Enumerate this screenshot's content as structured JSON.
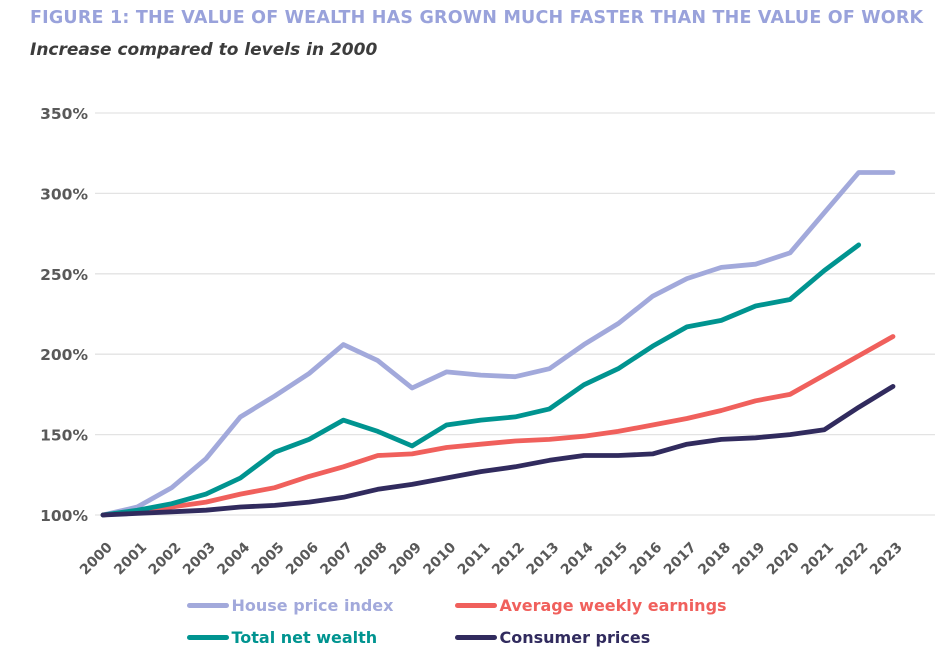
{
  "figure": {
    "title": "FIGURE 1: THE VALUE OF WEALTH HAS GROWN MUCH FASTER THAN THE VALUE OF WORK",
    "subtitle": "Increase compared to levels in 2000"
  },
  "colors": {
    "title_text": "#99a2db",
    "subtitle_text": "#3c3c3c",
    "axis_text": "#595959",
    "gridline": "#e3e3e3",
    "background": "#ffffff"
  },
  "chart_data": {
    "type": "line",
    "title": "FIGURE 1: THE VALUE OF WEALTH HAS GROWN MUCH FASTER THAN THE VALUE OF WORK",
    "subtitle": "Increase compared to levels in 2000",
    "xlabel": "",
    "ylabel": "",
    "grid": "horizontal gridlines only",
    "legend_position": "bottom",
    "ylim": [
      100,
      360
    ],
    "y_tick_values": [
      100,
      150,
      200,
      250,
      300,
      350
    ],
    "y_tick_labels": [
      "100%",
      "150%",
      "200%",
      "250%",
      "300%",
      "350%"
    ],
    "x": [
      2000,
      2001,
      2002,
      2003,
      2004,
      2005,
      2006,
      2007,
      2008,
      2009,
      2010,
      2011,
      2012,
      2013,
      2014,
      2015,
      2016,
      2017,
      2018,
      2019,
      2020,
      2021,
      2022,
      2023
    ],
    "series": [
      {
        "name": "House price index",
        "color": "#a2a9db",
        "values": [
          100,
          105,
          117,
          135,
          161,
          174,
          188,
          206,
          196,
          179,
          189,
          187,
          186,
          191,
          206,
          219,
          236,
          247,
          254,
          256,
          263,
          288,
          313,
          313
        ]
      },
      {
        "name": "Average weekly earnings",
        "color": "#f0605c",
        "values": [
          100,
          102,
          105,
          108,
          113,
          117,
          124,
          130,
          137,
          138,
          142,
          144,
          146,
          147,
          149,
          152,
          156,
          160,
          165,
          171,
          175,
          187,
          199,
          211
        ]
      },
      {
        "name": "Total net wealth",
        "color": "#009490",
        "values": [
          100,
          103,
          107,
          113,
          123,
          139,
          147,
          159,
          152,
          143,
          156,
          159,
          161,
          166,
          181,
          191,
          205,
          217,
          221,
          230,
          234,
          252,
          268,
          null
        ]
      },
      {
        "name": "Consumer prices",
        "color": "#312b5e",
        "values": [
          100,
          101,
          102,
          103,
          105,
          106,
          108,
          111,
          116,
          119,
          123,
          127,
          130,
          134,
          137,
          137,
          138,
          144,
          147,
          148,
          150,
          153,
          167,
          180
        ]
      }
    ]
  }
}
